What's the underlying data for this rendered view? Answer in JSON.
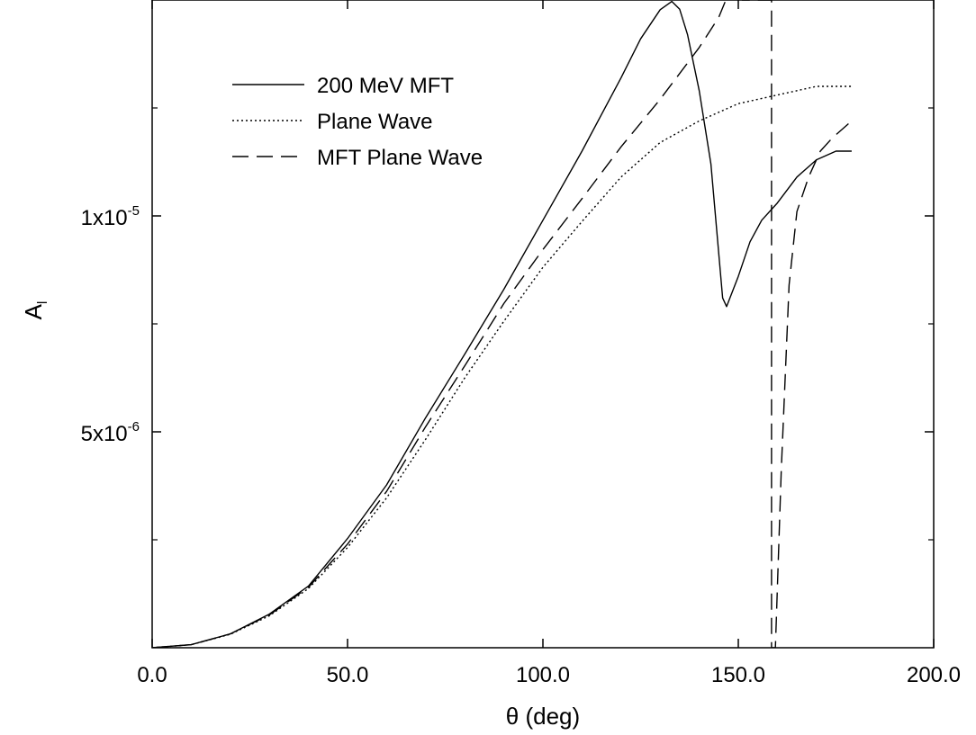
{
  "chart_data": {
    "type": "line",
    "xlabel": "θ (deg)",
    "ylabel": "A",
    "ylabel_sub": "l",
    "xlim": [
      0,
      200
    ],
    "ylim": [
      0,
      1.5e-05
    ],
    "x_ticks": [
      {
        "value": 0,
        "label": "0.0"
      },
      {
        "value": 50,
        "label": "50.0"
      },
      {
        "value": 100,
        "label": "100.0"
      },
      {
        "value": 150,
        "label": "150.0"
      },
      {
        "value": 200,
        "label": "200.0"
      }
    ],
    "y_ticks_major": [
      {
        "value": 5e-06,
        "base": "5x10",
        "exp": "-6"
      },
      {
        "value": 1e-05,
        "base": "1x10",
        "exp": "-5"
      }
    ],
    "y_ticks_minor": [
      2.5e-06,
      7.5e-06,
      1.25e-05
    ],
    "grid": false,
    "legend_position": "top-left",
    "series": [
      {
        "name": "200 MeV MFT",
        "style": "solid",
        "x": [
          0,
          10,
          20,
          30,
          40,
          50,
          60,
          70,
          80,
          90,
          100,
          110,
          120,
          125,
          130,
          133,
          135,
          137,
          140,
          143,
          146,
          147,
          150,
          153,
          156,
          160,
          165,
          170,
          175,
          179
        ],
        "y": [
          0,
          7e-08,
          3.2e-07,
          7.8e-07,
          1.43e-06,
          2.53e-06,
          3.77e-06,
          5.33e-06,
          6.8e-06,
          8.3e-06,
          9.9e-06,
          1.15e-05,
          1.32e-05,
          1.41e-05,
          1.4775e-05,
          1.4966e-05,
          1.4786e-05,
          1.42e-05,
          1.29e-05,
          1.12e-05,
          8.1e-06,
          7.9e-06,
          8.6e-06,
          9.4e-06,
          9.9e-06,
          1.03e-05,
          1.09e-05,
          1.13e-05,
          1.15e-05,
          1.15e-05
        ]
      },
      {
        "name": "Plane Wave",
        "style": "dotted",
        "x": [
          0,
          10,
          20,
          30,
          40,
          50,
          60,
          70,
          80,
          90,
          100,
          110,
          120,
          130,
          140,
          150,
          160,
          170,
          179
        ],
        "y": [
          0,
          7e-08,
          3.1e-07,
          7.4e-07,
          1.37e-06,
          2.32e-06,
          3.47e-06,
          4.83e-06,
          6.25e-06,
          7.56e-06,
          8.81e-06,
          9.87e-06,
          1.09e-05,
          1.17e-05,
          1.22e-05,
          1.26e-05,
          1.28e-05,
          1.3e-05,
          1.3e-05
        ]
      },
      {
        "name": "MFT Plane Wave",
        "style": "dashed",
        "x": [
          0,
          10,
          20,
          30,
          40,
          50,
          60,
          70,
          80,
          90,
          100,
          110,
          120,
          130,
          140,
          145,
          150,
          151,
          158.5,
          158.5,
          159.5,
          161,
          163,
          165,
          168,
          171,
          174,
          179
        ],
        "y": [
          0,
          7e-08,
          3.2e-07,
          7.6e-07,
          1.4e-06,
          2.4e-06,
          3.62e-06,
          5.12e-06,
          6.53e-06,
          7.97e-06,
          9.22e-06,
          1.04e-05,
          1.16e-05,
          1.27e-05,
          1.39e-05,
          1.46e-05,
          1.57e-05,
          1.5e-05,
          1.5e-05,
          0,
          0,
          4.1e-06,
          8.4e-06,
          1.01e-05,
          1.09e-05,
          1.15e-05,
          1.18e-05,
          1.22e-05
        ]
      }
    ]
  }
}
